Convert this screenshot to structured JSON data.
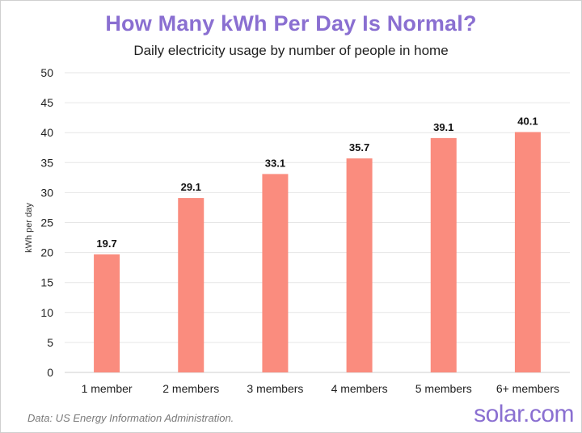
{
  "header": {
    "title": "How Many kWh Per Day Is Normal?",
    "subtitle": "Daily electricity usage by number of people in home"
  },
  "footer": {
    "source": "Data: US Energy Information Administration.",
    "brand": "solar.com"
  },
  "colors": {
    "bar": "#fa8c7e",
    "title": "#8a6fd1",
    "grid": "#e6e6e6"
  },
  "chart_data": {
    "type": "bar",
    "title": "How Many kWh Per Day Is Normal?",
    "subtitle": "Daily electricity usage by number of people in home",
    "xlabel": "",
    "ylabel": "kWh per day",
    "categories": [
      "1 member",
      "2 members",
      "3 members",
      "4 members",
      "5 members",
      "6+ members"
    ],
    "values": [
      19.7,
      29.1,
      33.1,
      35.7,
      39.1,
      40.1
    ],
    "value_labels": [
      "19.7",
      "29.1",
      "33.1",
      "35.7",
      "39.1",
      "40.1"
    ],
    "ylim": [
      0,
      50
    ],
    "yticks": [
      0,
      5,
      10,
      15,
      20,
      25,
      30,
      35,
      40,
      45,
      50
    ],
    "grid": true,
    "legend": "none"
  }
}
